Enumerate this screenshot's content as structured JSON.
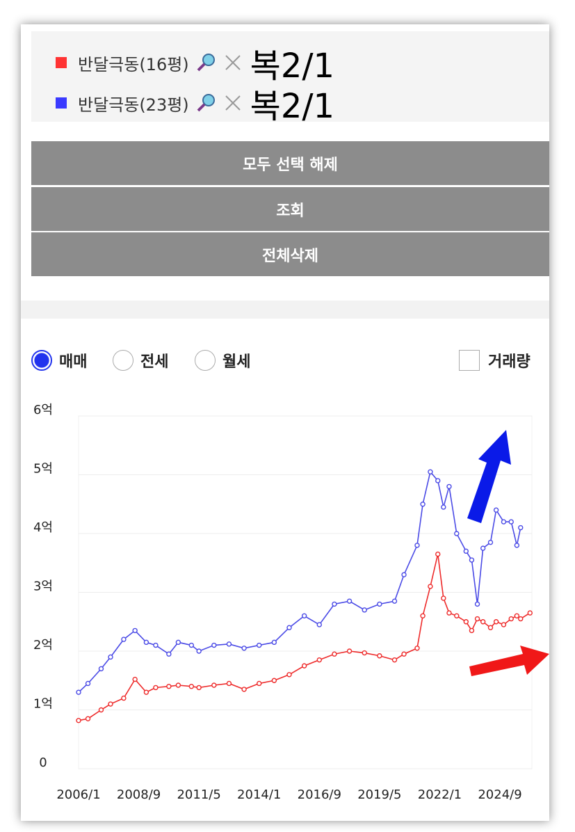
{
  "legend_notes": [
    "복2/1",
    "복2/1"
  ],
  "controls": {
    "buttons": [
      "모두 선택 해제",
      "조회",
      "전체삭제"
    ],
    "radios": [
      "매매",
      "전세",
      "월세"
    ],
    "checkbox": "거래량"
  },
  "chart_data": {
    "type": "line",
    "x": [
      "2006/1",
      "2006/6",
      "2007/1",
      "2007/6",
      "2008/1",
      "2008/7",
      "2009/1",
      "2009/6",
      "2010/1",
      "2010/6",
      "2011/1",
      "2011/5",
      "2012/1",
      "2012/9",
      "2013/5",
      "2014/1",
      "2014/9",
      "2015/5",
      "2016/1",
      "2016/9",
      "2017/5",
      "2018/1",
      "2018/9",
      "2019/5",
      "2020/1",
      "2020/6",
      "2021/1",
      "2021/4",
      "2021/8",
      "2021/12",
      "2022/3",
      "2022/6",
      "2022/10",
      "2023/3",
      "2023/6",
      "2023/9",
      "2023/12",
      "2024/4",
      "2024/7",
      "2024/11",
      "2025/3",
      "2025/6",
      "2025/8",
      "2026/1"
    ],
    "series": [
      {
        "name": "반달극동(16평)",
        "color": "#ee2a2a",
        "values": [
          0.82,
          0.85,
          1.0,
          1.1,
          1.2,
          1.52,
          1.3,
          1.38,
          1.4,
          1.42,
          1.4,
          1.38,
          1.42,
          1.45,
          1.35,
          1.45,
          1.5,
          1.6,
          1.75,
          1.85,
          1.95,
          2.0,
          1.97,
          1.92,
          1.85,
          1.95,
          2.05,
          2.6,
          3.1,
          3.65,
          2.9,
          2.65,
          2.6,
          2.5,
          2.35,
          2.55,
          2.5,
          2.4,
          2.5,
          2.45,
          2.55,
          2.6,
          2.55,
          2.65
        ]
      },
      {
        "name": "반달극동(23평)",
        "color": "#4a4ae6",
        "values": [
          1.3,
          1.45,
          1.7,
          1.9,
          2.2,
          2.35,
          2.15,
          2.1,
          1.95,
          2.15,
          2.1,
          2.0,
          2.1,
          2.12,
          2.05,
          2.1,
          2.15,
          2.4,
          2.6,
          2.45,
          2.8,
          2.85,
          2.7,
          2.8,
          2.85,
          3.3,
          3.8,
          4.5,
          5.05,
          4.9,
          4.45,
          4.8,
          4.0,
          3.7,
          3.55,
          2.8,
          3.75,
          3.85,
          4.4,
          4.2,
          4.2,
          3.8,
          4.1,
          null
        ]
      }
    ],
    "legend_colors": [
      "#ff3333",
      "#3a3aff"
    ],
    "xlim": [
      "2006/1",
      "2026/2"
    ],
    "xticks": [
      "2006/1",
      "2008/9",
      "2011/5",
      "2014/1",
      "2016/9",
      "2019/5",
      "2022/1",
      "2024/9"
    ],
    "ylim": [
      0,
      6
    ],
    "yticks": [
      0,
      {
        "value": 1,
        "label": "1억"
      },
      {
        "value": 2,
        "label": "2억"
      },
      {
        "value": 3,
        "label": "3억"
      },
      {
        "value": 4,
        "label": "4억"
      },
      {
        "value": 5,
        "label": "5억"
      },
      {
        "value": 6,
        "label": "6억"
      }
    ],
    "grid": true
  }
}
